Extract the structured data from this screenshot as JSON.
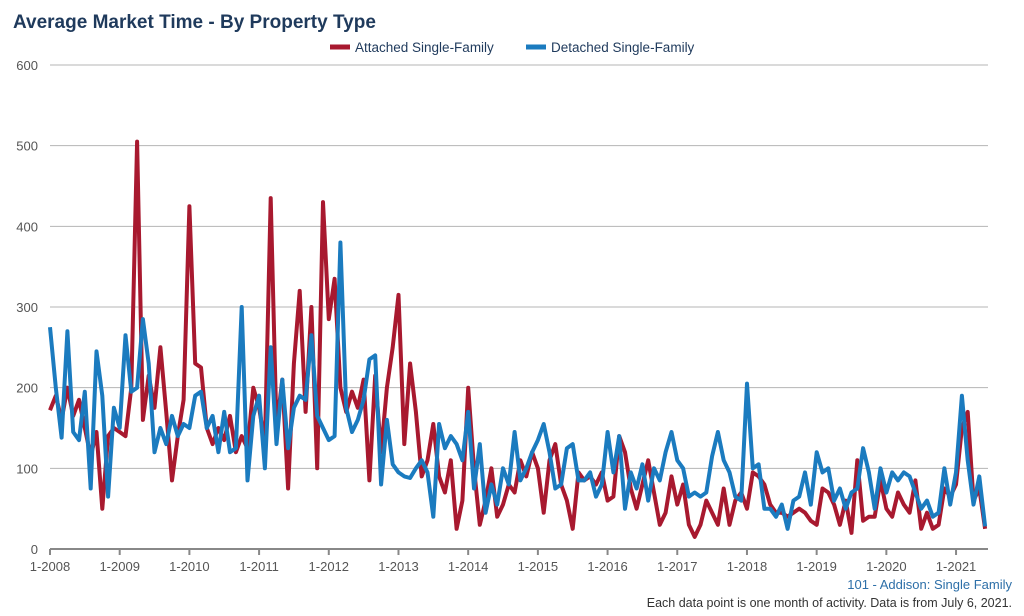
{
  "chart_data": {
    "type": "line",
    "title": "Average Market Time - By Property Type",
    "xlabel": "",
    "ylabel": "",
    "ylim": [
      0,
      600
    ],
    "yticks": [
      "0",
      "100",
      "200",
      "300",
      "400",
      "500",
      "600"
    ],
    "xticks": [
      "1-2008",
      "1-2009",
      "1-2010",
      "1-2011",
      "1-2012",
      "1-2013",
      "1-2014",
      "1-2015",
      "1-2016",
      "1-2017",
      "1-2018",
      "1-2019",
      "1-2020",
      "1-2021"
    ],
    "x_start": "1-2008",
    "x_end": "6-2021",
    "x_interval": "monthly",
    "grid": true,
    "legend_position": "top-center",
    "series": [
      {
        "name": "Attached Single-Family",
        "color": "#a8192f",
        "values": [
          172,
          190,
          160,
          200,
          165,
          185,
          150,
          115,
          145,
          50,
          140,
          150,
          145,
          140,
          200,
          505,
          160,
          215,
          175,
          250,
          170,
          85,
          140,
          185,
          425,
          230,
          225,
          150,
          130,
          150,
          135,
          165,
          120,
          140,
          125,
          200,
          175,
          130,
          435,
          150,
          210,
          75,
          230,
          320,
          170,
          300,
          100,
          430,
          285,
          335,
          200,
          170,
          195,
          175,
          210,
          85,
          215,
          120,
          200,
          250,
          315,
          130,
          230,
          170,
          90,
          110,
          155,
          90,
          70,
          110,
          25,
          60,
          200,
          100,
          30,
          60,
          100,
          40,
          55,
          80,
          70,
          110,
          90,
          120,
          100,
          45,
          110,
          130,
          80,
          60,
          25,
          95,
          85,
          90,
          80,
          95,
          60,
          65,
          140,
          120,
          75,
          50,
          80,
          110,
          70,
          30,
          45,
          90,
          55,
          80,
          30,
          15,
          30,
          60,
          45,
          30,
          75,
          30,
          60,
          70,
          50,
          95,
          90,
          80,
          55,
          45,
          45,
          40,
          45,
          50,
          45,
          35,
          30,
          75,
          70,
          55,
          30,
          60,
          20,
          110,
          35,
          40,
          40,
          85,
          50,
          40,
          70,
          55,
          45,
          85,
          25,
          45,
          25,
          30,
          75,
          65,
          80,
          150,
          170,
          60,
          75,
          25
        ]
      },
      {
        "name": "Detached Single-Family",
        "color": "#1b7bbf",
        "values": [
          275,
          200,
          138,
          270,
          145,
          135,
          195,
          75,
          245,
          190,
          65,
          175,
          150,
          265,
          195,
          200,
          285,
          230,
          120,
          150,
          130,
          165,
          140,
          155,
          150,
          190,
          195,
          150,
          165,
          120,
          170,
          120,
          125,
          300,
          85,
          165,
          190,
          100,
          250,
          130,
          210,
          125,
          175,
          190,
          185,
          265,
          165,
          150,
          135,
          140,
          380,
          175,
          145,
          160,
          185,
          235,
          240,
          80,
          160,
          105,
          95,
          90,
          88,
          100,
          110,
          95,
          40,
          155,
          125,
          140,
          130,
          110,
          170,
          75,
          130,
          45,
          80,
          55,
          100,
          80,
          145,
          85,
          100,
          120,
          135,
          155,
          120,
          75,
          80,
          125,
          130,
          85,
          85,
          95,
          65,
          80,
          145,
          95,
          140,
          50,
          95,
          75,
          105,
          60,
          100,
          85,
          120,
          145,
          110,
          100,
          65,
          70,
          65,
          70,
          115,
          145,
          110,
          95,
          65,
          60,
          205,
          100,
          105,
          50,
          50,
          40,
          55,
          25,
          60,
          65,
          95,
          55,
          120,
          95,
          100,
          60,
          75,
          50,
          70,
          75,
          125,
          95,
          50,
          100,
          70,
          95,
          85,
          95,
          90,
          70,
          50,
          60,
          40,
          45,
          100,
          55,
          95,
          190,
          110,
          55,
          90,
          28
        ]
      }
    ]
  },
  "footer": {
    "area": "101 - Addison: Single Family",
    "note": "Each data point is one month of activity. Data is from July 6, 2021."
  }
}
